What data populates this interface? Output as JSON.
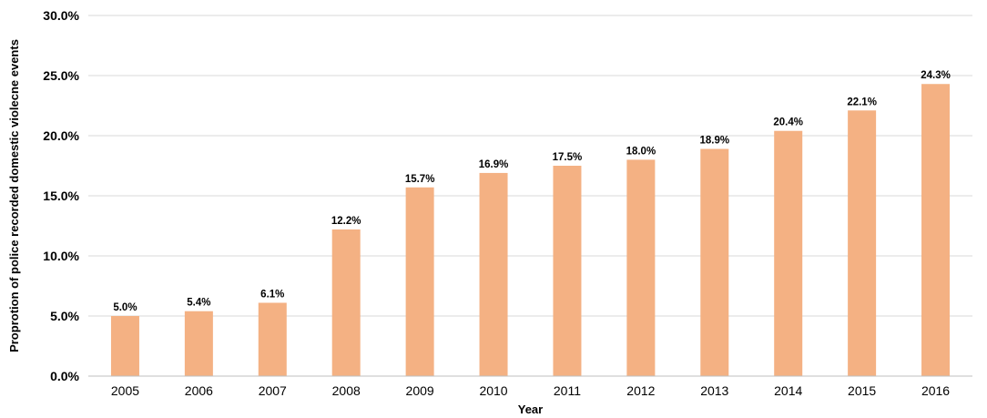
{
  "chart_data": {
    "type": "bar",
    "title": "",
    "xlabel": "Year",
    "ylabel": "Proprotion of police recorded domestic violecne events",
    "categories": [
      "2005",
      "2006",
      "2007",
      "2008",
      "2009",
      "2010",
      "2011",
      "2012",
      "2013",
      "2014",
      "2015",
      "2016"
    ],
    "values": [
      5.0,
      5.4,
      6.1,
      12.2,
      15.7,
      16.9,
      17.5,
      18.0,
      18.9,
      20.4,
      22.1,
      24.3
    ],
    "data_labels": [
      "5.0%",
      "5.4%",
      "6.1%",
      "12.2%",
      "15.7%",
      "16.9%",
      "17.5%",
      "18.0%",
      "18.9%",
      "20.4%",
      "22.1%",
      "24.3%"
    ],
    "ylim": [
      0,
      30
    ],
    "yticks": [
      0,
      5,
      10,
      15,
      20,
      25,
      30
    ],
    "ytick_labels": [
      "0.0%",
      "5.0%",
      "10.0%",
      "15.0%",
      "20.0%",
      "25.0%",
      "30.0%"
    ],
    "grid": "horizontal",
    "legend": "none",
    "bar_color": "#f4b183"
  }
}
